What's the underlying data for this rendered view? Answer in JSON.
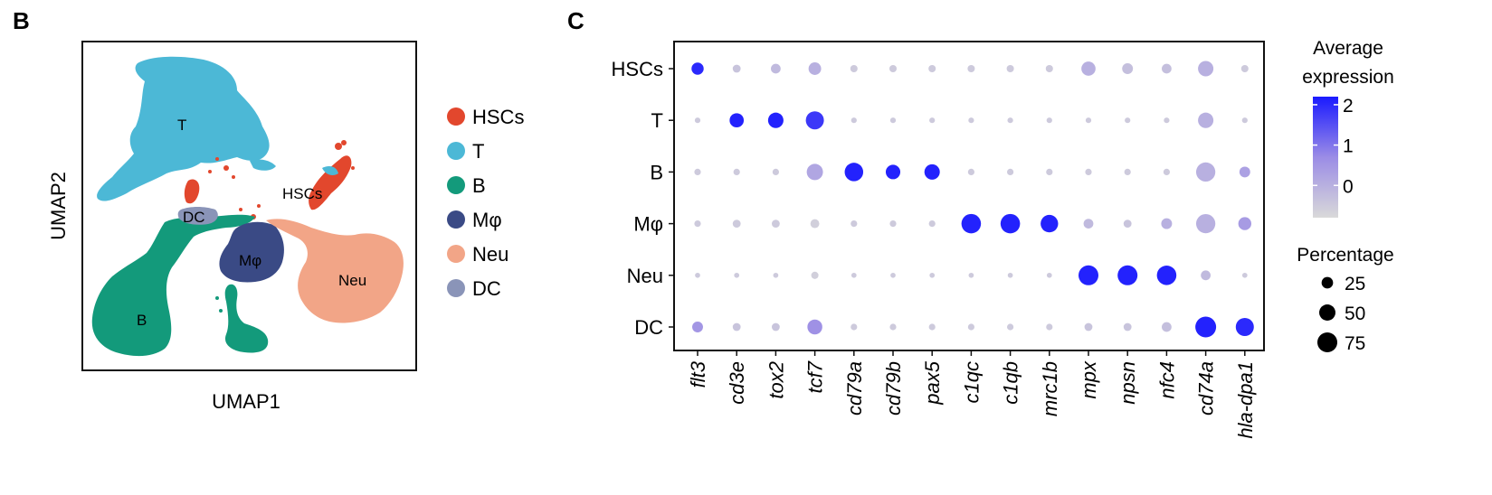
{
  "panels": {
    "B": {
      "label": "B"
    },
    "C": {
      "label": "C"
    }
  },
  "chart_data": [
    {
      "type": "scatter",
      "subtype": "umap",
      "xlabel": "UMAP1",
      "ylabel": "UMAP2",
      "legend_position": "right",
      "series": [
        {
          "name": "HSCs",
          "color": "#e2472d"
        },
        {
          "name": "T",
          "color": "#4cb8d6"
        },
        {
          "name": "B",
          "color": "#139a7b"
        },
        {
          "name": "Mφ",
          "color": "#3a4a85"
        },
        {
          "name": "Neu",
          "color": "#f2a587"
        },
        {
          "name": "DC",
          "color": "#8a94b8"
        }
      ],
      "cluster_labels": [
        "T",
        "HSCs",
        "DC",
        "Mφ",
        "Neu",
        "B"
      ]
    },
    {
      "type": "dotplot",
      "genes": [
        "flt3",
        "cd3e",
        "tox2",
        "tcf7",
        "cd79a",
        "cd79b",
        "pax5",
        "c1qc",
        "c1qb",
        "mrc1b",
        "mpx",
        "npsn",
        "nfc4",
        "cd74a",
        "hla-dpa1"
      ],
      "cell_types": [
        "HSCs",
        "T",
        "B",
        "Mφ",
        "Neu",
        "DC"
      ],
      "avg_expression": [
        [
          2.0,
          -0.4,
          -0.2,
          0.0,
          -0.5,
          -0.5,
          -0.5,
          -0.5,
          -0.5,
          -0.5,
          0.0,
          -0.3,
          -0.3,
          0.0,
          -0.5
        ],
        [
          -0.5,
          2.1,
          2.1,
          1.8,
          -0.5,
          -0.5,
          -0.5,
          -0.5,
          -0.5,
          -0.5,
          -0.5,
          -0.5,
          -0.5,
          0.0,
          -0.5
        ],
        [
          -0.5,
          -0.5,
          -0.5,
          0.2,
          2.1,
          2.1,
          2.1,
          -0.5,
          -0.5,
          -0.5,
          -0.5,
          -0.5,
          -0.5,
          0.0,
          0.3
        ],
        [
          -0.5,
          -0.5,
          -0.5,
          -0.6,
          -0.5,
          -0.5,
          -0.5,
          2.1,
          2.1,
          2.1,
          -0.2,
          -0.4,
          0.0,
          0.0,
          0.4
        ],
        [
          -0.5,
          -0.5,
          -0.5,
          -0.6,
          -0.5,
          -0.5,
          -0.5,
          -0.5,
          -0.5,
          -0.5,
          2.1,
          2.1,
          2.1,
          -0.2,
          -0.5
        ],
        [
          0.5,
          -0.4,
          -0.4,
          0.6,
          -0.5,
          -0.5,
          -0.5,
          -0.5,
          -0.5,
          -0.5,
          -0.4,
          -0.4,
          -0.3,
          2.1,
          2.0
        ]
      ],
      "pct_expressed": [
        [
          28,
          12,
          18,
          30,
          10,
          10,
          10,
          10,
          10,
          10,
          38,
          22,
          18,
          45,
          10
        ],
        [
          6,
          38,
          45,
          62,
          6,
          6,
          6,
          6,
          6,
          6,
          6,
          6,
          6,
          45,
          6
        ],
        [
          8,
          8,
          8,
          50,
          65,
          40,
          45,
          8,
          8,
          8,
          8,
          8,
          8,
          70,
          22
        ],
        [
          8,
          12,
          12,
          15,
          8,
          8,
          8,
          72,
          72,
          58,
          18,
          12,
          22,
          70,
          32
        ],
        [
          5,
          5,
          5,
          10,
          5,
          5,
          5,
          5,
          5,
          5,
          75,
          75,
          72,
          18,
          5
        ],
        [
          22,
          12,
          12,
          42,
          8,
          8,
          8,
          8,
          8,
          8,
          12,
          12,
          18,
          82,
          62
        ]
      ],
      "legend_expression": {
        "title_line1": "Average",
        "title_line2": "expression",
        "ticks": [
          2,
          1,
          0
        ],
        "range": [
          -0.8,
          2.2
        ]
      },
      "legend_percentage": {
        "title": "Percentage",
        "values": [
          25,
          50,
          75
        ]
      },
      "colors": {
        "low": "#d9d9d9",
        "high": "#1a1aff"
      }
    }
  ]
}
